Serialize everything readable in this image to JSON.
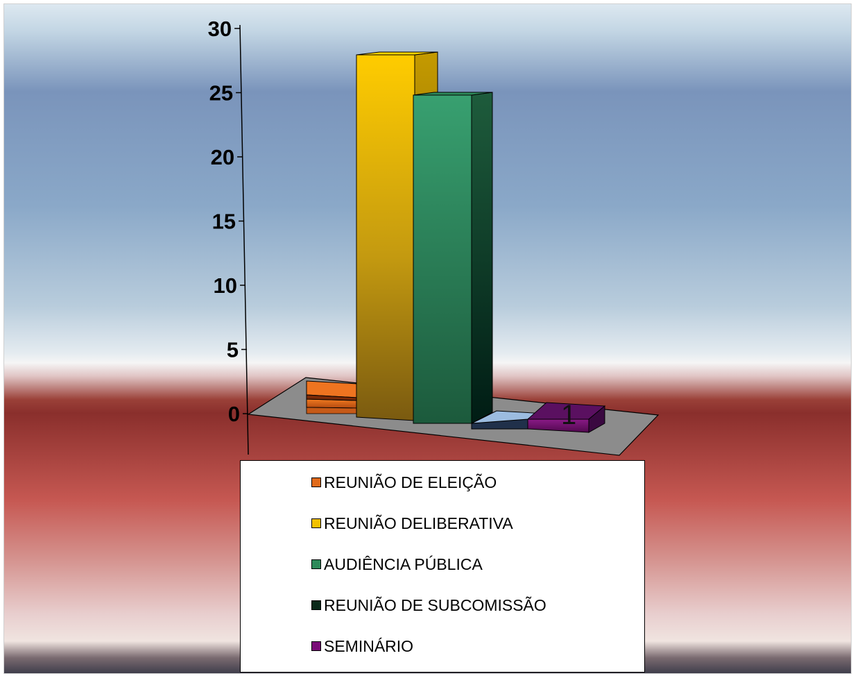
{
  "chart_data": {
    "type": "bar",
    "title": "",
    "xlabel": "",
    "ylabel": "",
    "ylim": [
      0,
      30
    ],
    "yticks": [
      "0",
      "5",
      "10",
      "15",
      "20",
      "25",
      "30"
    ],
    "grid": false,
    "legend_position": "bottom",
    "series": [
      {
        "name": "REUNIÃO DE ELEIÇÃO",
        "value": 1,
        "color": "#e06a1a"
      },
      {
        "name": "REUNIÃO DELIBERATIVA",
        "value": 28,
        "color": "#f2c100"
      },
      {
        "name": "AUDIÊNCIA PÚBLICA",
        "value": 25,
        "color": "#2e8a5a"
      },
      {
        "name": "REUNIÃO DE SUBCOMISSÃO",
        "value": 0,
        "color": "#0b2a1a"
      },
      {
        "name": "SEMINÁRIO",
        "value": 1,
        "color": "#7a0c78"
      }
    ],
    "data_labels": [
      "1"
    ]
  }
}
